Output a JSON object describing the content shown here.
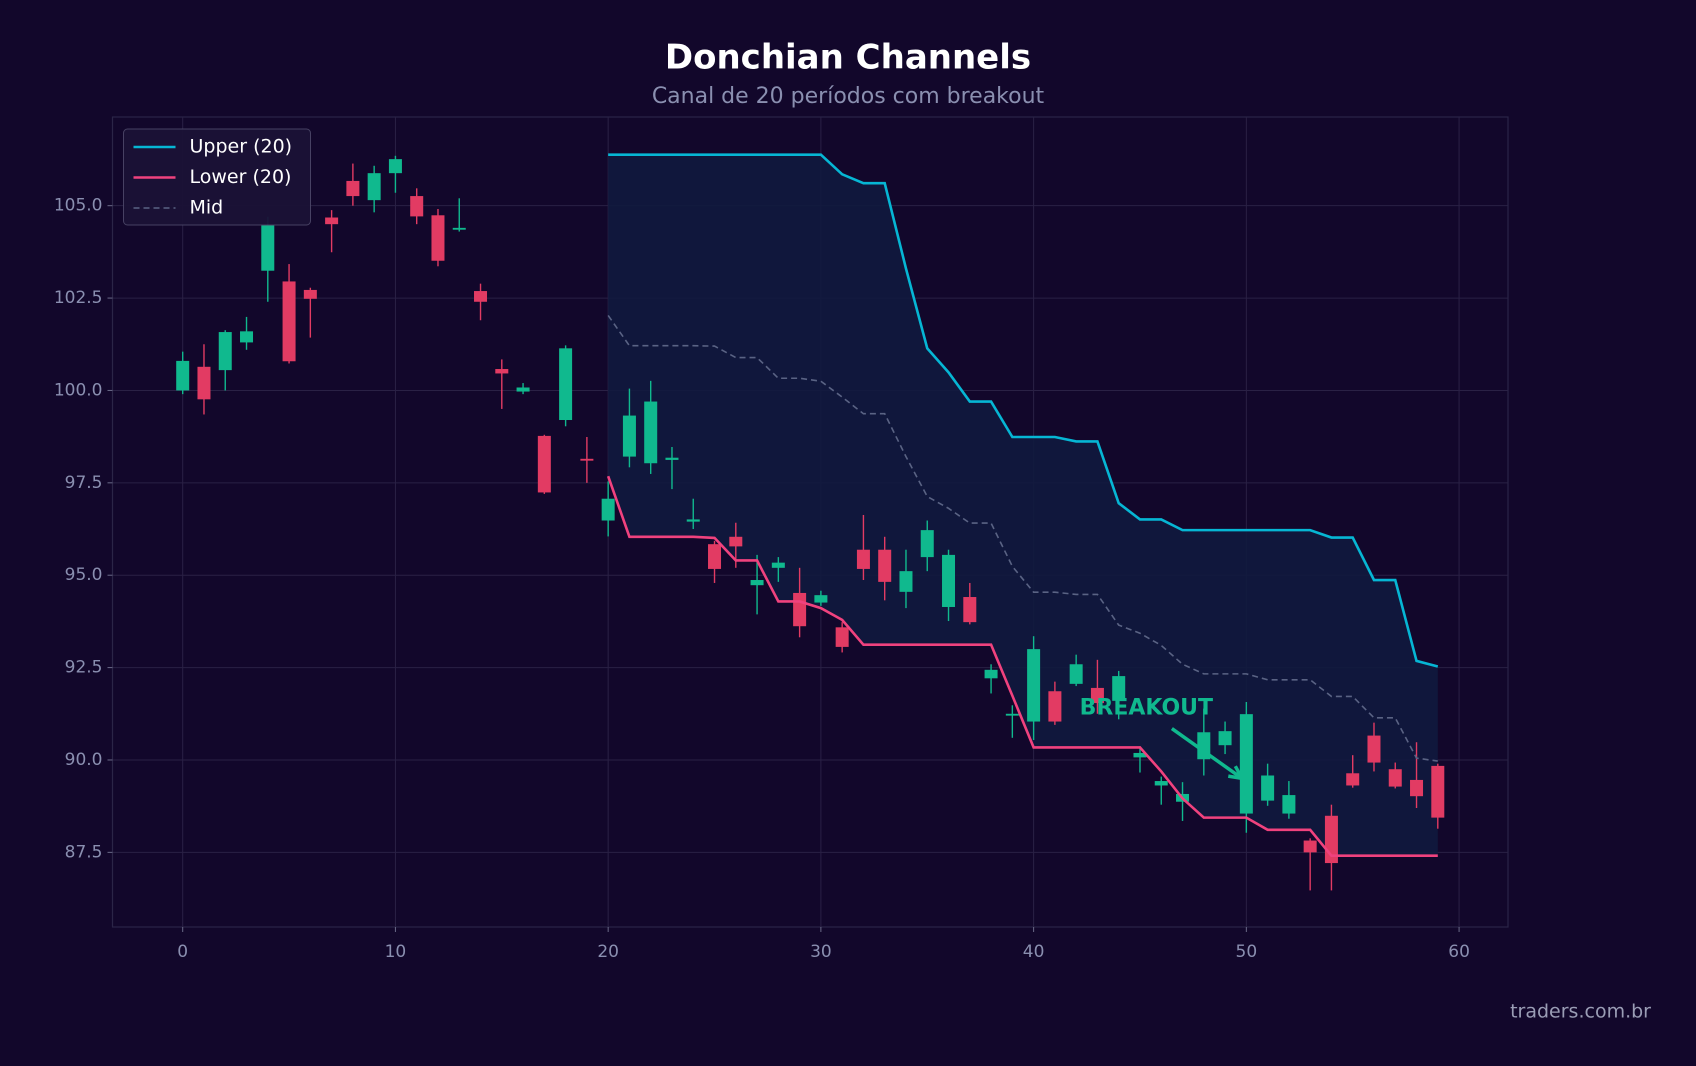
{
  "chart_data": {
    "type": "candlestick",
    "title": "Donchian Channels",
    "subtitle": "Canal de 20 períodos com breakout",
    "annotation": "BREAKOUT",
    "watermark": "traders.com.br",
    "x": [
      0,
      1,
      2,
      3,
      4,
      5,
      6,
      7,
      8,
      9,
      10,
      11,
      12,
      13,
      14,
      15,
      16,
      17,
      18,
      19,
      20,
      21,
      22,
      23,
      24,
      25,
      26,
      27,
      28,
      29,
      30,
      31,
      32,
      33,
      34,
      35,
      36,
      37,
      38,
      39,
      40,
      41,
      42,
      43,
      44,
      45,
      46,
      47,
      48,
      49,
      50,
      51,
      52,
      53,
      54,
      55,
      56,
      57,
      58,
      59
    ],
    "open": [
      100.0,
      100.64,
      100.55,
      101.3,
      103.24,
      102.95,
      102.72,
      104.68,
      105.67,
      105.15,
      105.88,
      105.26,
      104.74,
      104.35,
      102.69,
      100.58,
      99.97,
      98.77,
      99.2,
      98.15,
      96.48,
      98.21,
      98.03,
      98.12,
      96.45,
      95.84,
      96.04,
      94.73,
      95.2,
      94.52,
      94.26,
      93.59,
      95.69,
      95.69,
      94.55,
      95.49,
      94.14,
      94.41,
      92.21,
      91.2,
      91.04,
      91.86,
      92.06,
      91.95,
      91.6,
      90.07,
      89.31,
      88.87,
      90.02,
      90.4,
      88.55,
      88.9,
      88.55,
      87.82,
      88.49,
      89.64,
      90.66,
      89.75,
      89.46,
      89.84
    ],
    "high": [
      101.05,
      101.25,
      101.63,
      101.99,
      104.7,
      103.42,
      102.78,
      104.88,
      106.14,
      106.08,
      106.35,
      105.47,
      104.91,
      105.2,
      102.89,
      100.84,
      100.2,
      98.8,
      101.22,
      98.74,
      97.54,
      100.05,
      100.26,
      98.47,
      97.07,
      95.93,
      96.42,
      95.55,
      95.49,
      95.2,
      94.58,
      93.73,
      96.63,
      96.04,
      95.69,
      96.48,
      95.69,
      94.79,
      92.59,
      91.48,
      93.35,
      92.12,
      92.85,
      92.71,
      92.41,
      90.37,
      89.55,
      89.4,
      91.39,
      91.04,
      91.57,
      89.9,
      89.43,
      87.88,
      88.79,
      90.13,
      91.01,
      89.93,
      90.48,
      89.9
    ],
    "low": [
      99.9,
      99.35,
      100.0,
      101.1,
      102.4,
      100.73,
      101.43,
      103.74,
      105.0,
      104.82,
      105.35,
      104.5,
      103.36,
      104.3,
      101.9,
      99.5,
      99.9,
      97.2,
      99.03,
      97.5,
      96.05,
      97.92,
      97.74,
      97.33,
      96.25,
      94.79,
      95.2,
      93.94,
      94.82,
      93.32,
      94.17,
      92.91,
      94.87,
      94.32,
      94.11,
      95.11,
      93.76,
      93.67,
      91.8,
      90.6,
      90.54,
      90.95,
      92.0,
      91.25,
      91.1,
      89.66,
      88.79,
      88.35,
      89.58,
      90.16,
      88.03,
      88.76,
      88.41,
      86.47,
      86.47,
      89.25,
      89.69,
      89.23,
      88.7,
      88.14
    ],
    "close": [
      100.8,
      99.76,
      101.58,
      101.6,
      104.47,
      100.79,
      102.48,
      104.5,
      105.26,
      105.88,
      106.26,
      104.71,
      103.51,
      104.4,
      102.4,
      100.46,
      100.08,
      97.24,
      101.14,
      98.1,
      97.07,
      99.32,
      99.7,
      98.18,
      96.51,
      95.17,
      95.78,
      94.87,
      95.34,
      93.62,
      94.46,
      93.06,
      95.17,
      94.82,
      95.11,
      96.22,
      95.55,
      93.73,
      92.44,
      91.25,
      93.0,
      91.04,
      92.59,
      91.54,
      92.27,
      90.19,
      89.43,
      89.08,
      90.75,
      90.78,
      91.24,
      89.58,
      89.05,
      87.5,
      87.21,
      89.31,
      89.93,
      89.28,
      89.02,
      88.44
    ],
    "up_color": "#10b98e",
    "down_color": "#e23b63",
    "series": [
      {
        "name": "Upper (20)",
        "color": "#06b6d4",
        "style": "solid",
        "values": [
          null,
          null,
          null,
          null,
          null,
          null,
          null,
          null,
          null,
          null,
          null,
          null,
          null,
          null,
          null,
          null,
          null,
          null,
          null,
          null,
          106.38,
          106.38,
          106.38,
          106.38,
          106.38,
          106.38,
          106.38,
          106.38,
          106.38,
          106.38,
          106.38,
          105.85,
          105.61,
          105.61,
          103.3,
          101.14,
          100.49,
          99.7,
          99.7,
          98.74,
          98.74,
          98.74,
          98.62,
          98.62,
          96.95,
          96.51,
          96.51,
          96.22,
          96.22,
          96.22,
          96.22,
          96.22,
          96.22,
          96.22,
          96.02,
          96.02,
          94.87,
          94.87,
          92.68,
          92.53
        ]
      },
      {
        "name": "Lower (20)",
        "color": "#f0427e",
        "style": "solid",
        "values": [
          null,
          null,
          null,
          null,
          null,
          null,
          null,
          null,
          null,
          null,
          null,
          null,
          null,
          null,
          null,
          null,
          null,
          null,
          null,
          null,
          97.68,
          96.04,
          96.04,
          96.04,
          96.04,
          96.01,
          95.4,
          95.4,
          94.29,
          94.29,
          94.11,
          93.79,
          93.12,
          93.12,
          93.12,
          93.12,
          93.12,
          93.12,
          93.12,
          91.74,
          90.34,
          90.34,
          90.34,
          90.34,
          90.34,
          90.34,
          89.69,
          88.96,
          88.44,
          88.44,
          88.44,
          88.11,
          88.11,
          88.11,
          87.41,
          87.41,
          87.41,
          87.41,
          87.41,
          87.41
        ]
      },
      {
        "name": "Mid",
        "color": "#5a6384",
        "style": "dashed",
        "values": [
          null,
          null,
          null,
          null,
          null,
          null,
          null,
          null,
          null,
          null,
          null,
          null,
          null,
          null,
          null,
          null,
          null,
          null,
          null,
          null,
          102.03,
          101.21,
          101.21,
          101.21,
          101.21,
          101.2,
          100.89,
          100.89,
          100.33,
          100.33,
          100.25,
          99.82,
          99.37,
          99.37,
          98.21,
          97.13,
          96.81,
          96.41,
          96.41,
          95.24,
          94.54,
          94.54,
          94.48,
          94.48,
          93.65,
          93.43,
          93.1,
          92.59,
          92.33,
          92.33,
          92.33,
          92.17,
          92.17,
          92.17,
          91.72,
          91.72,
          91.14,
          91.14,
          90.05,
          89.97
        ]
      }
    ],
    "fill_color": "#111a3e",
    "xlim": [
      -3.3,
      62.3
    ],
    "ylim": [
      85.48,
      107.4
    ],
    "xticks": [
      0,
      10,
      20,
      30,
      40,
      50,
      60
    ],
    "yticks": [
      87.5,
      {
        "value": 90,
        "label": "90.0"
      },
      92.5,
      {
        "value": 95,
        "label": "95.0"
      },
      97.5,
      {
        "value": 100,
        "label": "100.0"
      },
      102.5,
      {
        "value": 105,
        "label": "105.0"
      }
    ],
    "grid": true,
    "legend": "upper left"
  }
}
